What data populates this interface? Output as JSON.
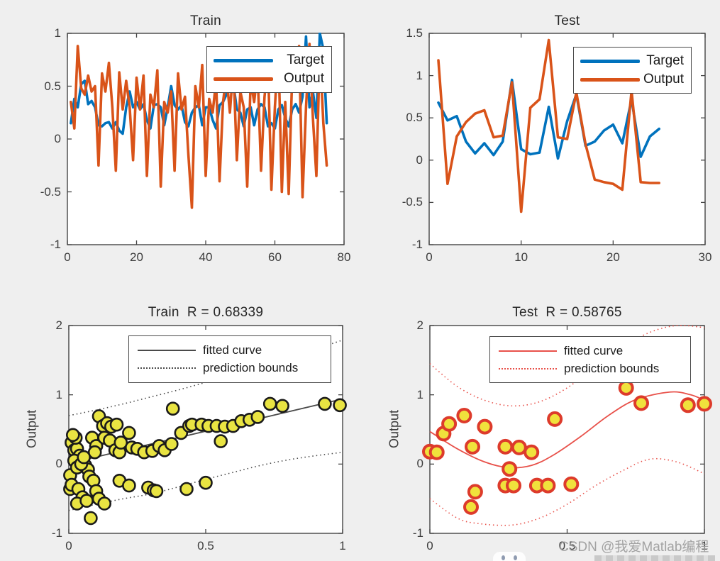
{
  "watermark": {
    "text": "CSDN @我爱Matlab编程"
  },
  "colors": {
    "background": "#efefef",
    "axis": "#444444",
    "target_blue": "#0072BD",
    "output_orange": "#D95319",
    "train_marker_fill": "#e9e442",
    "train_marker_edge": "#1a1a1a",
    "train_fit_line": "#4a4a4a",
    "test_marker_fill": "#f0e23c",
    "test_marker_edge": "#dd3b2b",
    "test_fit_line": "#e8514a"
  },
  "chart_data": [
    {
      "id": "train-series",
      "type": "line",
      "title": "Train",
      "xlabel": "",
      "ylabel": "",
      "xlim": [
        0,
        80
      ],
      "ylim": [
        -1,
        1
      ],
      "xticks": [
        0,
        20,
        40,
        60,
        80
      ],
      "yticks": [
        1,
        0.5,
        0,
        -0.5,
        -1
      ],
      "grid": false,
      "legend_position": "upper-right",
      "series": [
        {
          "name": "Target",
          "color": "#0072BD",
          "values": [
            0.15,
            0.38,
            0.3,
            0.52,
            0.55,
            0.33,
            0.36,
            0.3,
            0.13,
            0.12,
            0.15,
            0.16,
            0.1,
            0.16,
            0.08,
            0.05,
            0.3,
            0.45,
            0.3,
            0.35,
            0.28,
            0.33,
            0.18,
            0.1,
            0.32,
            0.33,
            0.3,
            0.13,
            0.3,
            0.5,
            0.32,
            0.28,
            0.32,
            0.16,
            0.12,
            0.25,
            0.3,
            0.32,
            0.13,
            0.3,
            0.3,
            0.18,
            0.1,
            0.32,
            0.35,
            0.42,
            0.55,
            0.52,
            0.28,
            0.25,
            0.12,
            0.28,
            0.3,
            0.13,
            0.28,
            0.33,
            0.3,
            0.12,
            0.15,
            0.1,
            0.28,
            0.32,
            0.2,
            0.12,
            0.28,
            0.33,
            0.25,
            0.4,
            0.97,
            0.3,
            0.45,
            0.2,
            1.0,
            0.85,
            0.15
          ]
        },
        {
          "name": "Output",
          "color": "#D95319",
          "values": [
            0.35,
            0.1,
            0.88,
            0.48,
            0.42,
            0.6,
            0.45,
            0.5,
            -0.25,
            0.62,
            0.45,
            0.72,
            0.3,
            -0.3,
            0.63,
            0.28,
            0.55,
            0.3,
            -0.2,
            0.58,
            0.28,
            0.6,
            -0.35,
            0.42,
            0.3,
            0.65,
            -0.45,
            0.35,
            0.25,
            0.45,
            -0.3,
            0.62,
            0.28,
            0.4,
            -0.15,
            -0.65,
            0.5,
            0.3,
            0.7,
            -0.35,
            0.38,
            0.25,
            0.55,
            -0.4,
            0.35,
            0.6,
            0.25,
            0.7,
            -0.2,
            0.45,
            0.3,
            -0.45,
            0.55,
            0.35,
            0.65,
            -0.3,
            0.4,
            0.72,
            -0.48,
            0.3,
            0.85,
            -0.5,
            0.35,
            -0.52,
            0.6,
            0.45,
            0.88,
            -0.55,
            0.3,
            0.9,
            0.2,
            -0.35,
            0.85,
            0.15,
            -0.25
          ]
        }
      ]
    },
    {
      "id": "test-series",
      "type": "line",
      "title": "Test",
      "xlabel": "",
      "ylabel": "",
      "xlim": [
        0,
        30
      ],
      "ylim": [
        -1,
        1.5
      ],
      "xticks": [
        0,
        10,
        20,
        30
      ],
      "yticks": [
        1.5,
        1,
        0.5,
        0,
        -0.5,
        -1
      ],
      "grid": false,
      "legend_position": "upper-right",
      "series": [
        {
          "name": "Target",
          "color": "#0072BD",
          "values": [
            0.68,
            0.47,
            0.52,
            0.22,
            0.08,
            0.2,
            0.06,
            0.22,
            0.95,
            0.13,
            0.07,
            0.09,
            0.63,
            0.02,
            0.46,
            0.78,
            0.17,
            0.22,
            0.35,
            0.42,
            0.2,
            0.72,
            0.04,
            0.28,
            0.37
          ]
        },
        {
          "name": "Output",
          "color": "#D95319",
          "values": [
            1.18,
            -0.28,
            0.28,
            0.45,
            0.55,
            0.59,
            0.27,
            0.29,
            0.92,
            -0.61,
            0.62,
            0.72,
            1.42,
            0.27,
            0.25,
            0.8,
            0.19,
            -0.23,
            -0.26,
            -0.28,
            -0.35,
            0.82,
            -0.26,
            -0.27,
            -0.27
          ]
        }
      ]
    },
    {
      "id": "train-regression",
      "type": "scatter",
      "title": "Train  R = 0.68339",
      "xlabel": "",
      "ylabel": "Output",
      "xlim": [
        0,
        1
      ],
      "ylim": [
        -1,
        2
      ],
      "xticks": [
        0,
        0.5,
        1
      ],
      "yticks": [
        2,
        1,
        0,
        -1
      ],
      "grid": false,
      "legend": [
        "fitted curve",
        "prediction bounds"
      ],
      "marker": {
        "fill": "#e9e442",
        "edge": "#1a1a1a",
        "radius": 8.5,
        "edge_width": 2.6
      },
      "line_color": "#4a4a4a",
      "points": [
        [
          0.01,
          0.31
        ],
        [
          0.02,
          0.2
        ],
        [
          0.03,
          0.22
        ],
        [
          0.04,
          0.12
        ],
        [
          0.005,
          -0.16
        ],
        [
          0.005,
          -0.36
        ],
        [
          0.01,
          -0.3
        ],
        [
          0.035,
          -0.36
        ],
        [
          0.05,
          -0.48
        ],
        [
          0.03,
          -0.57
        ],
        [
          0.065,
          -0.53
        ],
        [
          0.08,
          -0.78
        ],
        [
          0.06,
          -0.02
        ],
        [
          0.07,
          -0.08
        ],
        [
          0.075,
          -0.18
        ],
        [
          0.09,
          -0.24
        ],
        [
          0.1,
          -0.39
        ],
        [
          0.11,
          -0.5
        ],
        [
          0.13,
          -0.57
        ],
        [
          0.11,
          0.69
        ],
        [
          0.085,
          0.38
        ],
        [
          0.1,
          0.26
        ],
        [
          0.095,
          0.17
        ],
        [
          0.125,
          0.55
        ],
        [
          0.14,
          0.59
        ],
        [
          0.155,
          0.54
        ],
        [
          0.175,
          0.57
        ],
        [
          0.13,
          0.38
        ],
        [
          0.15,
          0.34
        ],
        [
          0.17,
          0.2
        ],
        [
          0.185,
          0.17
        ],
        [
          0.19,
          0.31
        ],
        [
          0.22,
          0.45
        ],
        [
          0.23,
          0.24
        ],
        [
          0.25,
          0.22
        ],
        [
          0.275,
          0.17
        ],
        [
          0.305,
          0.19
        ],
        [
          0.33,
          0.26
        ],
        [
          0.35,
          0.2
        ],
        [
          0.375,
          0.29
        ],
        [
          0.38,
          0.8
        ],
        [
          0.41,
          0.45
        ],
        [
          0.44,
          0.55
        ],
        [
          0.45,
          0.57
        ],
        [
          0.485,
          0.57
        ],
        [
          0.51,
          0.55
        ],
        [
          0.54,
          0.55
        ],
        [
          0.57,
          0.54
        ],
        [
          0.6,
          0.55
        ],
        [
          0.555,
          0.33
        ],
        [
          0.63,
          0.62
        ],
        [
          0.66,
          0.64
        ],
        [
          0.69,
          0.68
        ],
        [
          0.735,
          0.87
        ],
        [
          0.78,
          0.84
        ],
        [
          0.935,
          0.87
        ],
        [
          0.99,
          0.85
        ],
        [
          0.185,
          -0.24
        ],
        [
          0.22,
          -0.31
        ],
        [
          0.29,
          -0.34
        ],
        [
          0.31,
          -0.38
        ],
        [
          0.32,
          -0.39
        ],
        [
          0.43,
          -0.36
        ],
        [
          0.5,
          -0.27
        ],
        [
          0.02,
          0.05
        ],
        [
          0.03,
          -0.05
        ],
        [
          0.045,
          0.0
        ],
        [
          0.055,
          0.1
        ],
        [
          0.025,
          0.38
        ],
        [
          0.015,
          0.42
        ]
      ],
      "fit_curve": [
        [
          0,
          0.01
        ],
        [
          1,
          0.94
        ]
      ],
      "upper_bound": [
        [
          0,
          0.7
        ],
        [
          0.1,
          0.78
        ],
        [
          0.2,
          0.87
        ],
        [
          0.3,
          0.97
        ],
        [
          0.4,
          1.07
        ],
        [
          0.5,
          1.18
        ],
        [
          0.6,
          1.3
        ],
        [
          0.7,
          1.42
        ],
        [
          0.8,
          1.54
        ],
        [
          0.9,
          1.66
        ],
        [
          1,
          1.79
        ]
      ],
      "lower_bound": [
        [
          0,
          -0.67
        ],
        [
          0.1,
          -0.58
        ],
        [
          0.2,
          -0.5
        ],
        [
          0.3,
          -0.43
        ],
        [
          0.4,
          -0.33
        ],
        [
          0.5,
          -0.22
        ],
        [
          0.6,
          -0.12
        ],
        [
          0.7,
          -0.02
        ],
        [
          0.8,
          0.06
        ],
        [
          0.9,
          0.12
        ],
        [
          1,
          0.17
        ]
      ]
    },
    {
      "id": "test-regression",
      "type": "scatter",
      "title": "Test  R = 0.58765",
      "xlabel": "",
      "ylabel": "Output",
      "xlim": [
        0,
        1
      ],
      "ylim": [
        -1,
        2
      ],
      "xticks": [
        0,
        0.5,
        1
      ],
      "yticks": [
        2,
        1,
        0,
        -1
      ],
      "grid": false,
      "legend": [
        "fitted curve",
        "prediction bounds"
      ],
      "marker": {
        "fill": "#f0e23c",
        "edge": "#dd3b2b",
        "radius": 9,
        "edge_width": 4
      },
      "line_color": "#e8514a",
      "points": [
        [
          0.0,
          0.18
        ],
        [
          0.025,
          0.17
        ],
        [
          0.05,
          0.44
        ],
        [
          0.07,
          0.58
        ],
        [
          0.125,
          0.7
        ],
        [
          0.155,
          0.25
        ],
        [
          0.165,
          -0.4
        ],
        [
          0.15,
          -0.62
        ],
        [
          0.2,
          0.54
        ],
        [
          0.275,
          0.25
        ],
        [
          0.29,
          -0.07
        ],
        [
          0.275,
          -0.31
        ],
        [
          0.305,
          -0.31
        ],
        [
          0.325,
          0.24
        ],
        [
          0.37,
          0.17
        ],
        [
          0.39,
          -0.31
        ],
        [
          0.43,
          -0.31
        ],
        [
          0.455,
          0.65
        ],
        [
          0.515,
          -0.29
        ],
        [
          0.715,
          1.1
        ],
        [
          0.77,
          0.88
        ],
        [
          0.94,
          0.85
        ],
        [
          1.0,
          0.87
        ]
      ],
      "fit_curve": [
        [
          0,
          0.47
        ],
        [
          0.1,
          0.22
        ],
        [
          0.2,
          0.03
        ],
        [
          0.285,
          -0.05
        ],
        [
          0.37,
          -0.02
        ],
        [
          0.45,
          0.13
        ],
        [
          0.55,
          0.4
        ],
        [
          0.65,
          0.7
        ],
        [
          0.75,
          0.93
        ],
        [
          0.875,
          1.04
        ],
        [
          0.95,
          1.0
        ],
        [
          1,
          0.92
        ]
      ],
      "upper_bound": [
        [
          0,
          1.45
        ],
        [
          0.1,
          1.12
        ],
        [
          0.2,
          0.92
        ],
        [
          0.3,
          0.84
        ],
        [
          0.4,
          0.9
        ],
        [
          0.5,
          1.1
        ],
        [
          0.6,
          1.4
        ],
        [
          0.7,
          1.68
        ],
        [
          0.8,
          1.9
        ],
        [
          0.9,
          2.0
        ],
        [
          1,
          1.97
        ]
      ],
      "lower_bound": [
        [
          0,
          -0.5
        ],
        [
          0.1,
          -0.78
        ],
        [
          0.18,
          -0.86
        ],
        [
          0.3,
          -0.88
        ],
        [
          0.4,
          -0.78
        ],
        [
          0.5,
          -0.58
        ],
        [
          0.6,
          -0.32
        ],
        [
          0.7,
          -0.1
        ],
        [
          0.8,
          0.07
        ],
        [
          0.9,
          0.03
        ],
        [
          1,
          -0.14
        ]
      ]
    }
  ]
}
